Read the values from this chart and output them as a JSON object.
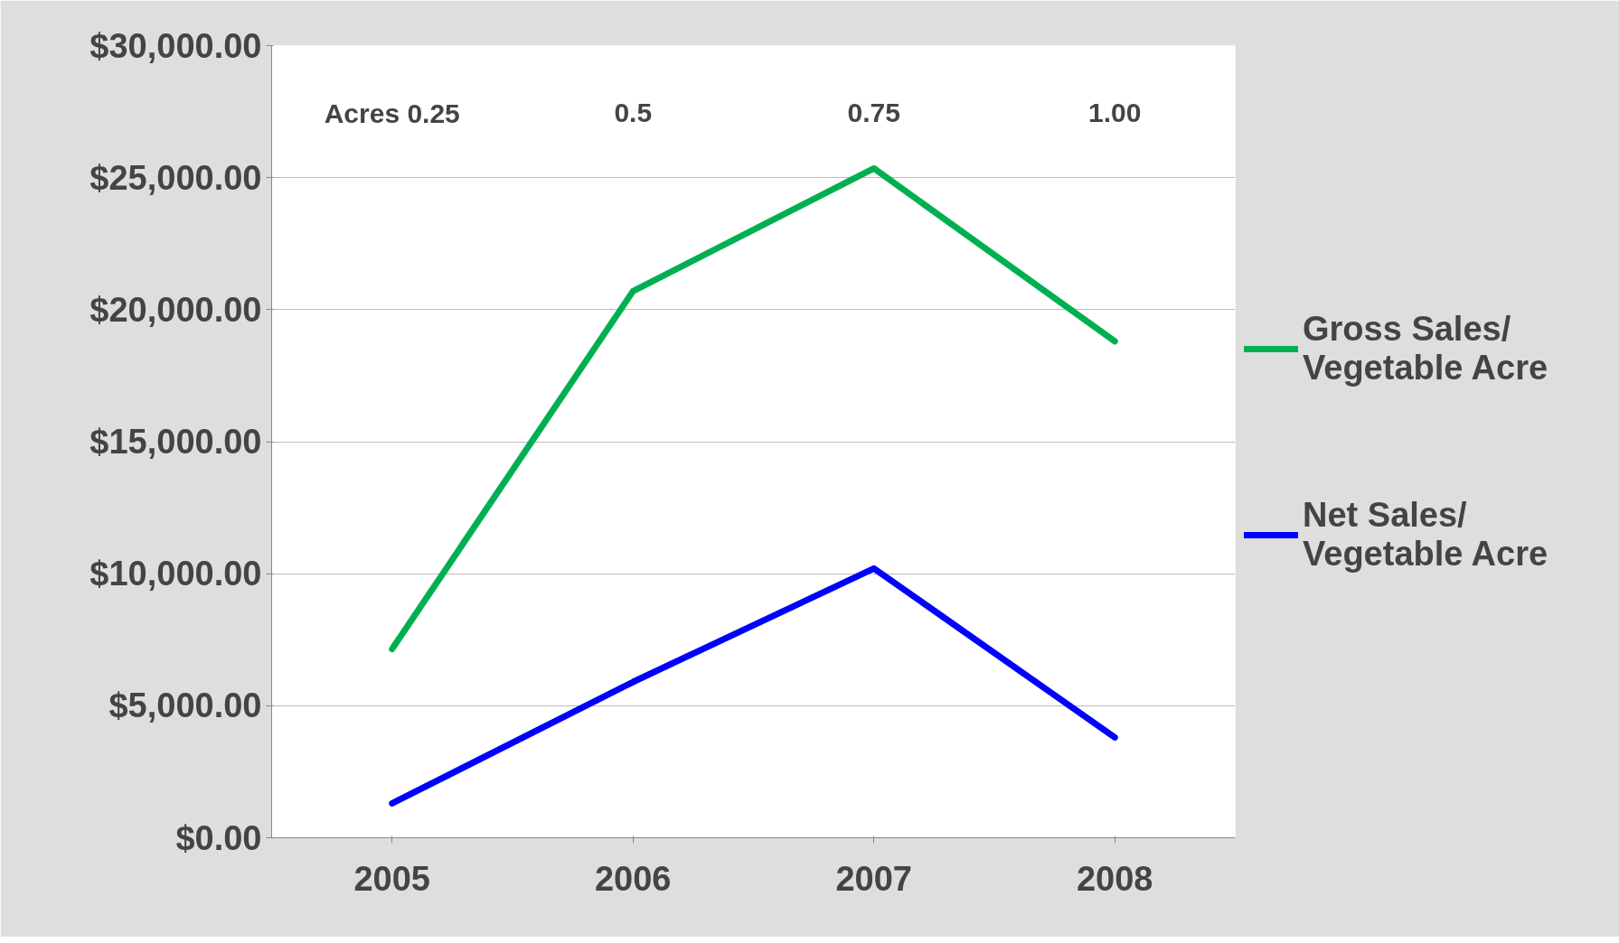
{
  "chart_data": {
    "type": "line",
    "categories": [
      "2005",
      "2006",
      "2007",
      "2008"
    ],
    "series": [
      {
        "name": "Gross Sales/ Vegetable Acre",
        "color": "#00b050",
        "values": [
          7150,
          20700,
          25350,
          18800
        ]
      },
      {
        "name": "Net Sales/ Vegetable Acre",
        "color": "#0000ff",
        "values": [
          1300,
          5900,
          10200,
          3800
        ]
      }
    ],
    "ylim": [
      0,
      30000
    ],
    "yticks": [
      {
        "value": 0,
        "label": "$0.00"
      },
      {
        "value": 5000,
        "label": "$5,000.00"
      },
      {
        "value": 10000,
        "label": "$10,000.00"
      },
      {
        "value": 15000,
        "label": "$15,000.00"
      },
      {
        "value": 20000,
        "label": "$20,000.00"
      },
      {
        "value": 25000,
        "label": "$25,000.00"
      },
      {
        "value": 30000,
        "label": "$30,000.00"
      }
    ],
    "annotations": [
      "Acres 0.25",
      "0.5",
      "0.75",
      "1.00"
    ],
    "grid": "y",
    "legend": "right",
    "marker": "none",
    "line_style": "solid"
  }
}
